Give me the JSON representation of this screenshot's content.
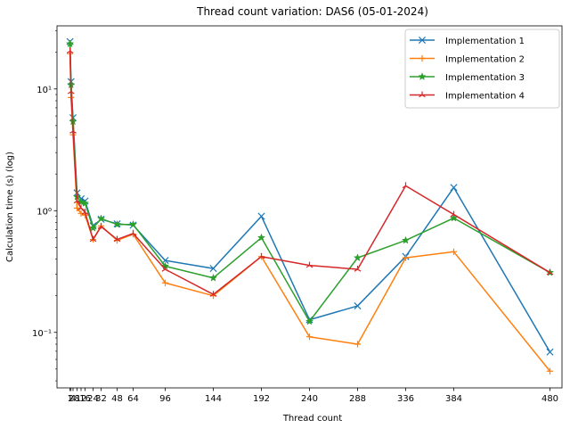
{
  "chart_data": {
    "type": "line",
    "title": "Thread count variation: DAS6 (05-01-2024)",
    "xlabel": "Thread count",
    "ylabel": "Calculation time (s) (log)",
    "yscale": "log",
    "xlim": [
      -12,
      492
    ],
    "ylim": [
      0.035,
      33
    ],
    "xticks": [
      1,
      2,
      4,
      8,
      12,
      16,
      24,
      32,
      48,
      64,
      96,
      144,
      192,
      240,
      288,
      336,
      384,
      480
    ],
    "xtick_labels": [
      "1",
      "2",
      "4",
      "8",
      "12",
      "16",
      "24",
      "32",
      "48",
      "64",
      "96",
      "144",
      "192",
      "240",
      "288",
      "336",
      "384",
      "480"
    ],
    "yticks": [
      0.1,
      1,
      10
    ],
    "ytick_labels": [
      "10⁻¹",
      "10⁰",
      "10¹"
    ],
    "grid": false,
    "legend_position": "top-right",
    "x": [
      1,
      2,
      4,
      8,
      12,
      16,
      24,
      32,
      48,
      64,
      96,
      144,
      192,
      240,
      288,
      336,
      384,
      480
    ],
    "series": [
      {
        "name": "Implementation 1",
        "color": "#1f77b4",
        "marker": "x",
        "values": [
          24.5,
          11.5,
          5.8,
          1.4,
          1.25,
          1.2,
          0.75,
          0.85,
          0.78,
          0.76,
          0.39,
          0.335,
          0.9,
          0.127,
          0.165,
          0.42,
          1.55,
          0.069
        ]
      },
      {
        "name": "Implementation 2",
        "color": "#ff7f0e",
        "marker": "plus",
        "values": [
          19.5,
          8.5,
          4.2,
          1.05,
          0.95,
          0.92,
          0.58,
          0.75,
          0.57,
          0.64,
          0.255,
          0.2,
          0.42,
          0.092,
          0.08,
          0.41,
          0.46,
          0.048
        ]
      },
      {
        "name": "Implementation 3",
        "color": "#2ca02c",
        "marker": "star",
        "values": [
          23.5,
          10.8,
          5.4,
          1.3,
          1.18,
          1.15,
          0.72,
          0.86,
          0.77,
          0.77,
          0.35,
          0.28,
          0.6,
          0.123,
          0.41,
          0.57,
          0.87,
          0.31
        ]
      },
      {
        "name": "Implementation 4",
        "color": "#d62728",
        "marker": "tri",
        "values": [
          20.5,
          9.5,
          4.5,
          1.2,
          1.05,
          0.97,
          0.58,
          0.74,
          0.58,
          0.65,
          0.33,
          0.205,
          0.42,
          0.355,
          0.33,
          1.6,
          0.93,
          0.31
        ]
      }
    ]
  }
}
